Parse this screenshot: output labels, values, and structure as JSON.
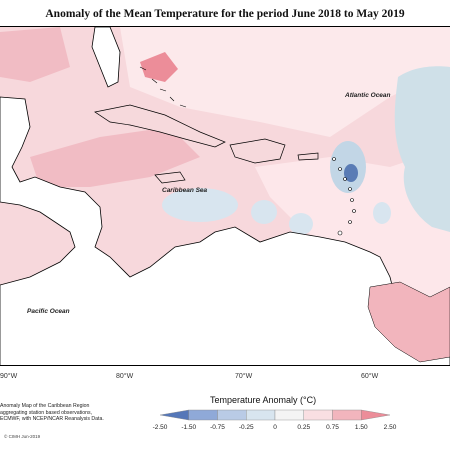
{
  "title": "Anomaly of the Mean Temperature for the period June 2018 to May 2019",
  "map": {
    "ocean_labels": [
      "Atlantic Ocean",
      "Caribbean Sea",
      "Pacific Ocean"
    ],
    "longitude_labels": [
      "90°W",
      "80°W",
      "70°W",
      "60°W"
    ]
  },
  "credits": [
    "Anomaly Map of the Caribbean Region",
    "aggregating station based observations,",
    "ECMWF, with NCEP/NCAR Reanalysis Data."
  ],
  "copyright": "© CIMH Jun-2019",
  "legend": {
    "title": "Temperature Anomaly (°C)",
    "ticks": [
      "-2.50",
      "-1.50",
      "-0.75",
      "-0.25",
      "0",
      "0.25",
      "0.75",
      "1.50",
      "2.50"
    ],
    "colors": [
      "#5577b8",
      "#8fa9d8",
      "#b9cbe6",
      "#d8e5ef",
      "#f4f4f4",
      "#f9dfe2",
      "#f2b5bd",
      "#ec8d99"
    ]
  }
}
